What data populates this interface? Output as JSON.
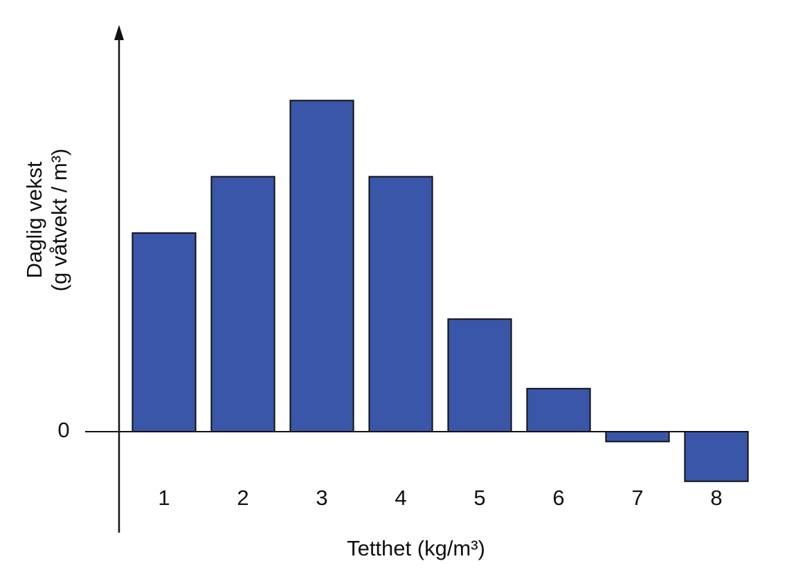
{
  "chart_data": {
    "type": "bar",
    "y_label": [
      "Daglig vekst",
      "(g våtvekt / m³)"
    ],
    "x_label": "Tetthet (kg/m³)",
    "categories": [
      "1",
      "2",
      "3",
      "4",
      "5",
      "6",
      "7",
      "8"
    ],
    "values": [
      6.0,
      7.7,
      10,
      7.7,
      3.4,
      1.3,
      -0.3,
      -1.5
    ],
    "color": "#3a56a8",
    "ylim": [
      -3.05,
      12.2
    ],
    "yticks": [
      0
    ],
    "grid": false
  }
}
